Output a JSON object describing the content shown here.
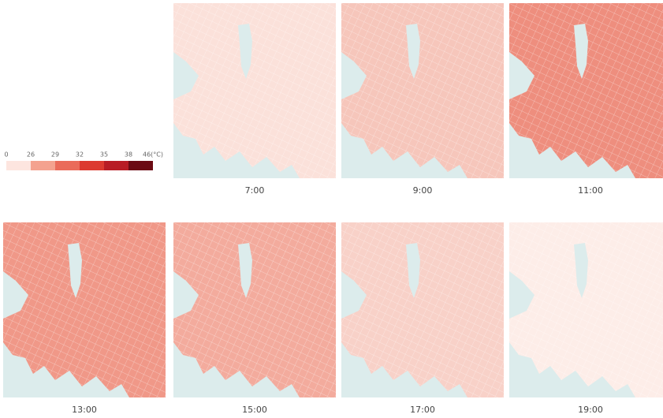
{
  "legend": {
    "labels": [
      "0",
      "26",
      "29",
      "32",
      "35",
      "38",
      "46(°C)"
    ],
    "colors": [
      "#fde5df",
      "#f4a28f",
      "#ea6b5a",
      "#dc3a30",
      "#b81c25",
      "#6b0a14"
    ]
  },
  "water_color": "#dcecec",
  "panels": [
    {
      "time": "7:00",
      "color": "#fbe1da"
    },
    {
      "time": "9:00",
      "color": "#f6c6bb"
    },
    {
      "time": "11:00",
      "color": "#ee8e7e"
    },
    {
      "time": "13:00",
      "color": "#f09888"
    },
    {
      "time": "15:00",
      "color": "#f3ab9d"
    },
    {
      "time": "17:00",
      "color": "#f8d1c8"
    },
    {
      "time": "19:00",
      "color": "#fdede8"
    }
  ]
}
